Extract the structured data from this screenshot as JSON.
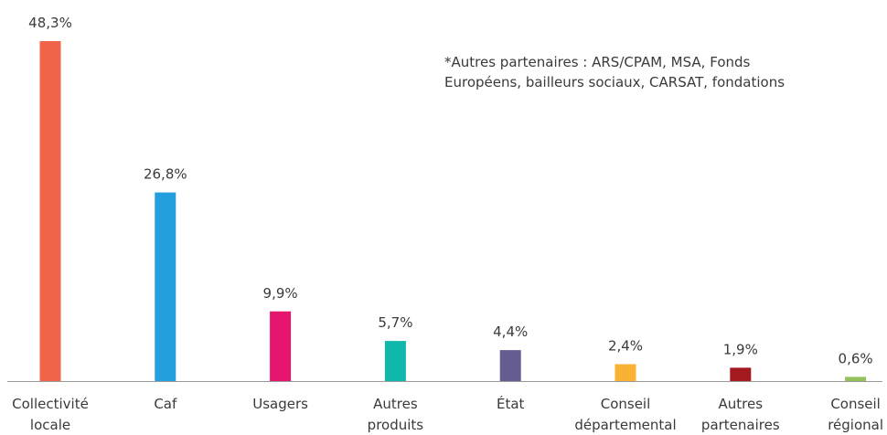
{
  "chart_data": {
    "type": "bar",
    "categories": [
      [
        "Collectivité",
        "locale"
      ],
      [
        "Caf"
      ],
      [
        "Usagers"
      ],
      [
        "Autres",
        "produits"
      ],
      [
        "État"
      ],
      [
        "Conseil",
        "départemental"
      ],
      [
        "Autres",
        "partenaires"
      ],
      [
        "Conseil",
        "régional"
      ]
    ],
    "values": [
      48.3,
      26.8,
      9.9,
      5.7,
      4.4,
      2.4,
      1.9,
      0.6
    ],
    "value_labels": [
      "48,3%",
      "26,8%",
      "9,9%",
      "5,7%",
      "4,4%",
      "2,4%",
      "1,9%",
      "0,6%"
    ],
    "colors": [
      "#f0654a",
      "#239fdd",
      "#e6166e",
      "#10b8ac",
      "#655d92",
      "#f9b233",
      "#a3191f",
      "#95c15a"
    ],
    "axis_color": "#9a9a9a",
    "ylim": [
      0,
      48.3
    ],
    "grid": false,
    "legend": "none",
    "note": [
      "*Autres partenaires : ARS/CPAM, MSA, Fonds",
      "Européens, bailleurs sociaux, CARSAT, fondations"
    ]
  }
}
